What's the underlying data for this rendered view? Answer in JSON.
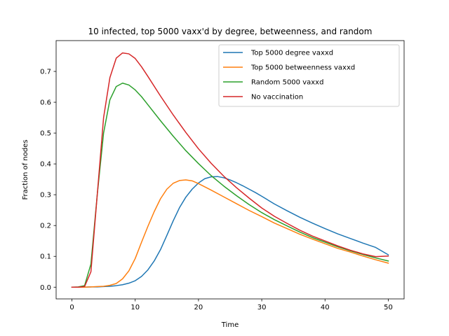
{
  "chart_data": {
    "type": "line",
    "title": "10 infected, top 5000 vaxx'd by degree, betweenness, and random",
    "xlabel": "Time",
    "ylabel": "Fraction of nodes",
    "xlim": [
      -2.5,
      52.5
    ],
    "ylim": [
      -0.038,
      0.8
    ],
    "xticks": [
      0,
      10,
      20,
      30,
      40,
      50
    ],
    "yticks": [
      0.0,
      0.1,
      0.2,
      0.3,
      0.4,
      0.5,
      0.6,
      0.7
    ],
    "ytick_labels": [
      "0.0",
      "0.1",
      "0.2",
      "0.3",
      "0.4",
      "0.5",
      "0.6",
      "0.7"
    ],
    "grid": false,
    "legend_position": "upper right",
    "series": [
      {
        "name": "Top 5000 degree vaxxd",
        "color": "#1f77b4",
        "x": [
          0,
          1,
          2,
          3,
          4,
          5,
          6,
          7,
          8,
          9,
          10,
          11,
          12,
          13,
          14,
          15,
          16,
          17,
          18,
          19,
          20,
          21,
          22,
          23,
          24,
          25,
          26,
          27,
          28,
          29,
          30,
          32,
          34,
          36,
          38,
          40,
          42,
          44,
          46,
          48,
          50
        ],
        "y": [
          0.0,
          0.0,
          0.0,
          0.001,
          0.001,
          0.002,
          0.003,
          0.005,
          0.008,
          0.013,
          0.021,
          0.035,
          0.056,
          0.085,
          0.122,
          0.168,
          0.215,
          0.258,
          0.292,
          0.318,
          0.338,
          0.352,
          0.358,
          0.359,
          0.355,
          0.348,
          0.339,
          0.329,
          0.318,
          0.307,
          0.295,
          0.27,
          0.248,
          0.227,
          0.208,
          0.19,
          0.173,
          0.158,
          0.143,
          0.129,
          0.105
        ]
      },
      {
        "name": "Top 5000 betweenness vaxxd",
        "color": "#ff7f0e",
        "x": [
          0,
          1,
          2,
          3,
          4,
          5,
          6,
          7,
          8,
          9,
          10,
          11,
          12,
          13,
          14,
          15,
          16,
          17,
          18,
          19,
          20,
          22,
          24,
          26,
          28,
          30,
          32,
          34,
          36,
          38,
          40,
          42,
          44,
          46,
          48,
          50
        ],
        "y": [
          0.0,
          0.0,
          0.0,
          0.001,
          0.002,
          0.003,
          0.006,
          0.012,
          0.027,
          0.053,
          0.093,
          0.146,
          0.197,
          0.245,
          0.287,
          0.318,
          0.337,
          0.346,
          0.348,
          0.345,
          0.336,
          0.315,
          0.293,
          0.271,
          0.249,
          0.229,
          0.208,
          0.19,
          0.172,
          0.156,
          0.141,
          0.126,
          0.114,
          0.101,
          0.089,
          0.078
        ]
      },
      {
        "name": "Random 5000 vaxxd",
        "color": "#2ca02c",
        "x": [
          0,
          1,
          2,
          3,
          4,
          5,
          6,
          7,
          8,
          9,
          10,
          11,
          12,
          14,
          16,
          18,
          20,
          22,
          24,
          26,
          28,
          30,
          32,
          34,
          36,
          38,
          40,
          42,
          44,
          46,
          48,
          50
        ],
        "y": [
          0.0,
          0.001,
          0.005,
          0.075,
          0.3,
          0.5,
          0.608,
          0.651,
          0.662,
          0.656,
          0.64,
          0.618,
          0.592,
          0.54,
          0.49,
          0.443,
          0.401,
          0.362,
          0.328,
          0.297,
          0.268,
          0.242,
          0.219,
          0.199,
          0.179,
          0.161,
          0.146,
          0.131,
          0.118,
          0.106,
          0.095,
          0.085
        ]
      },
      {
        "name": "No vaccination",
        "color": "#d62728",
        "x": [
          0,
          1,
          2,
          3,
          4,
          5,
          6,
          7,
          8,
          9,
          10,
          11,
          12,
          14,
          16,
          18,
          20,
          22,
          24,
          26,
          28,
          30,
          32,
          34,
          36,
          38,
          40,
          42,
          44,
          46,
          48,
          50
        ],
        "y": [
          0.0,
          0.0,
          0.002,
          0.05,
          0.3,
          0.55,
          0.68,
          0.743,
          0.76,
          0.757,
          0.742,
          0.715,
          0.684,
          0.62,
          0.559,
          0.502,
          0.449,
          0.402,
          0.36,
          0.323,
          0.289,
          0.257,
          0.23,
          0.207,
          0.185,
          0.166,
          0.15,
          0.134,
          0.12,
          0.108,
          0.099,
          0.101
        ]
      }
    ]
  }
}
